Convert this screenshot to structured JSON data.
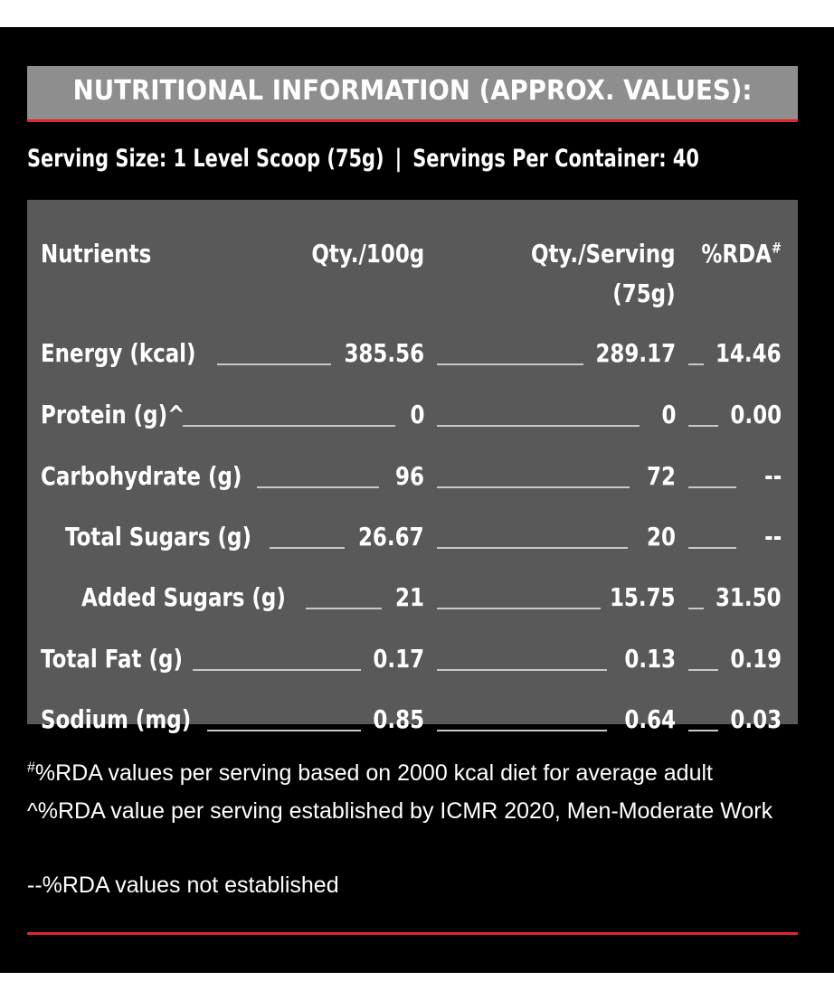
{
  "title": "NUTRITIONAL INFORMATION (APPROX. VALUES):",
  "serving": {
    "size": "Serving Size: 1 Level Scoop (75g)",
    "separator": "|",
    "per_container": "Servings Per Container: 40"
  },
  "table": {
    "headers": {
      "nutrients": "Nutrients",
      "per100": "Qty./100g",
      "per_serving_line1": "Qty./Serving",
      "per_serving_line2": "(75g)",
      "rda": "%RDA",
      "rda_mark": "#"
    },
    "rows": [
      {
        "name": "Energy (kcal)",
        "per100": "385.56",
        "serving": "289.17",
        "rda": "14.46"
      },
      {
        "name": "Protein (g)^",
        "per100": "0",
        "serving": "0",
        "rda": "0.00"
      },
      {
        "name": "Carbohydrate (g)",
        "per100": "96",
        "serving": "72",
        "rda": "--"
      },
      {
        "name": "Total Sugars (g)",
        "per100": "26.67",
        "serving": "20",
        "rda": "--"
      },
      {
        "name": "Added Sugars (g)",
        "per100": "21",
        "serving": "15.75",
        "rda": "31.50"
      },
      {
        "name": "Total Fat (g)",
        "per100": "0.17",
        "serving": "0.13",
        "rda": "0.19"
      },
      {
        "name": "Sodium (mg)",
        "per100": "0.85",
        "serving": "0.64",
        "rda": "0.03"
      }
    ]
  },
  "footnotes": {
    "note1_mark": "#",
    "note1": "%RDA values per serving based on 2000 kcal diet for average adult",
    "note2": "^%RDA value per serving established by ICMR 2020, Men-Moderate Work",
    "note3": "--%RDA values not established"
  },
  "colors": {
    "background": "#000000",
    "title_bar": "#8e8e8e",
    "table_bg": "#595959",
    "accent_red": "#e1242e",
    "text": "#ffffff"
  }
}
